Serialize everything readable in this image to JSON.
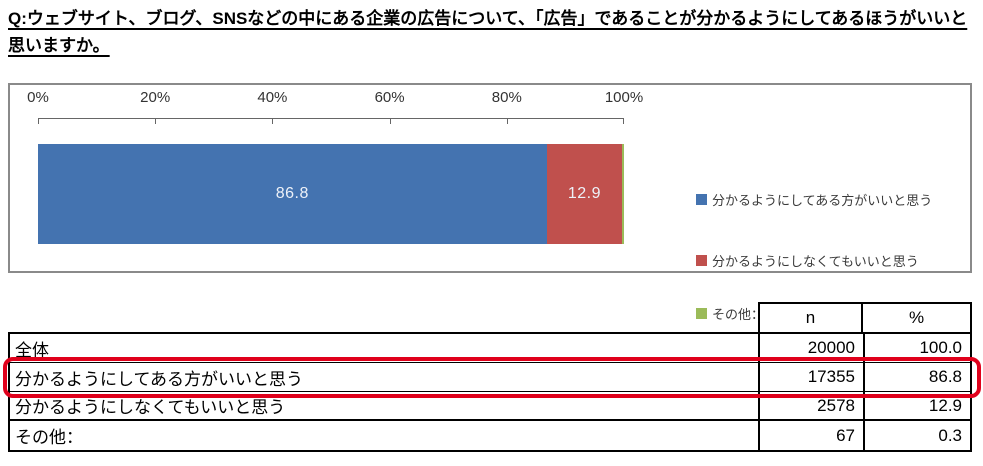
{
  "question": {
    "title": "Q:ウェブサイト、ブログ、SNSなどの中にある企業の広告について、「広告」であることが分かるようにしてあるほうがいいと思いますか。"
  },
  "chart_data": {
    "type": "bar",
    "subtype": "horizontal-stacked",
    "orientation": "horizontal",
    "axis_position": "top",
    "x_ticks": [
      "0%",
      "20%",
      "40%",
      "60%",
      "80%",
      "100%"
    ],
    "xlim": [
      0,
      100
    ],
    "grid": false,
    "legend_position": "right",
    "series": [
      {
        "name": "分かるようにしてある方がいいと思う",
        "value": 86.8,
        "data_label": "86.8",
        "color": "#4473b0"
      },
      {
        "name": "分かるようにしなくてもいいと思う",
        "value": 12.9,
        "data_label": "12.9",
        "color": "#c0504d"
      },
      {
        "name": "その他：",
        "value": 0.3,
        "data_label": "",
        "color": "#9bbb59"
      }
    ]
  },
  "table": {
    "header": {
      "n": "n",
      "pct": "%"
    },
    "rows": [
      {
        "label": "全体",
        "n": "20000",
        "pct": "100.0",
        "highlighted": false
      },
      {
        "label": "分かるようにしてある方がいいと思う",
        "n": "17355",
        "pct": "86.8",
        "highlighted": true
      },
      {
        "label": "分かるようにしなくてもいいと思う",
        "n": "2578",
        "pct": "12.9",
        "highlighted": false
      },
      {
        "label": "その他：",
        "n": "67",
        "pct": "0.3",
        "highlighted": false
      }
    ],
    "highlight_color": "#e0001b"
  }
}
